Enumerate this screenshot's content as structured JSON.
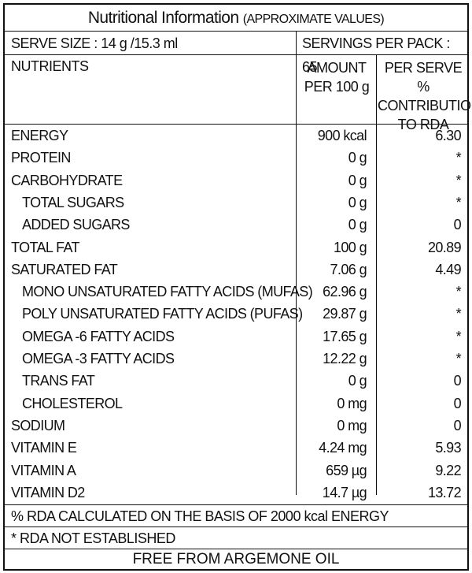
{
  "title": "Nutritional Information",
  "subtitle": "(APPROXIMATE VALUES)",
  "serve_size": "SERVE SIZE : 14 g /15.3 ml",
  "servings_per_pack": "SERVINGS PER PACK : 65",
  "headers": {
    "nutrients": "NUTRIENTS",
    "amount_line1": "AMOUNT",
    "amount_line2": "PER 100 g",
    "rda_line1": "PER SERVE %",
    "rda_line2": "CONTRIBUTION",
    "rda_line3": "TO RDA"
  },
  "rows": [
    {
      "name": "ENERGY",
      "amount": "900 kcal",
      "rda": "6.30",
      "indent": false
    },
    {
      "name": "PROTEIN",
      "amount": "0 g",
      "rda": "*",
      "indent": false
    },
    {
      "name": "CARBOHYDRATE",
      "amount": "0 g",
      "rda": "*",
      "indent": false
    },
    {
      "name": "TOTAL SUGARS",
      "amount": "0 g",
      "rda": "*",
      "indent": true
    },
    {
      "name": "ADDED SUGARS",
      "amount": "0 g",
      "rda": "0",
      "indent": true
    },
    {
      "name": "TOTAL FAT",
      "amount": "100 g",
      "rda": "20.89",
      "indent": false
    },
    {
      "name": "SATURATED FAT",
      "amount": "7.06 g",
      "rda": "4.49",
      "indent": false
    },
    {
      "name": "MONO UNSATURATED FATTY ACIDS (MUFAS)",
      "amount": "62.96 g",
      "rda": "*",
      "indent": true
    },
    {
      "name": "POLY UNSATURATED FATTY ACIDS (PUFAS)",
      "amount": "29.87 g",
      "rda": "*",
      "indent": true
    },
    {
      "name": "OMEGA -6 FATTY ACIDS",
      "amount": "17.65 g",
      "rda": "*",
      "indent": true
    },
    {
      "name": "OMEGA -3 FATTY ACIDS",
      "amount": "12.22 g",
      "rda": "*",
      "indent": true
    },
    {
      "name": "TRANS FAT",
      "amount": "0 g",
      "rda": "0",
      "indent": true
    },
    {
      "name": "CHOLESTEROL",
      "amount": "0 mg",
      "rda": "0",
      "indent": true
    },
    {
      "name": "SODIUM",
      "amount": "0 mg",
      "rda": "0",
      "indent": false
    },
    {
      "name": "VITAMIN E",
      "amount": "4.24 mg",
      "rda": "5.93",
      "indent": false
    },
    {
      "name": "VITAMIN A",
      "amount": "659 µg",
      "rda": "9.22",
      "indent": false
    },
    {
      "name": "VITAMIN D2",
      "amount": "14.7 µg",
      "rda": "13.72",
      "indent": false
    }
  ],
  "footnote_rda": "% RDA CALCULATED ON THE BASIS OF 2000 kcal ENERGY",
  "footnote_not_established": "* RDA NOT ESTABLISHED",
  "free_from": "FREE FROM ARGEMONE OIL"
}
